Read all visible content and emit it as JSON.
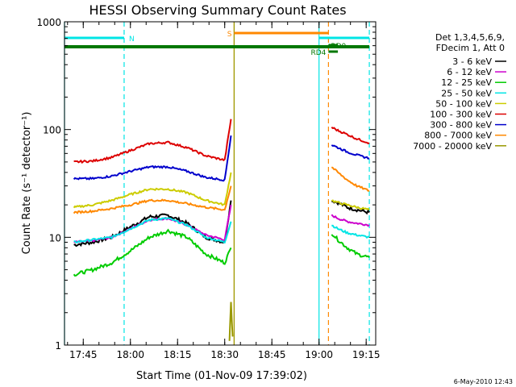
{
  "chart_data": {
    "type": "line",
    "title": "HESSI Observing Summary Count Rates",
    "xlabel": "Start Time (01-Nov-09 17:39:02)",
    "ylabel": "Count Rate (s⁻¹ detector⁻¹)",
    "y_scale": "log",
    "ylim": [
      1,
      1000
    ],
    "xlim_minutes_from_17_39_02": [
      0,
      99
    ],
    "x_ticks": [
      "17:45",
      "18:00",
      "18:15",
      "18:30",
      "18:45",
      "19:00",
      "19:15"
    ],
    "y_ticks": [
      "1",
      "10",
      "100",
      "1000"
    ],
    "grid": false,
    "legend_position": "outside-right",
    "legend_header": [
      "Det 1,3,4,5,6,9,",
      "FDecim 1, Att 0"
    ],
    "series": [
      {
        "name": "3 - 6 keV",
        "color": "#000000",
        "segments": [
          {
            "x": [
              "17:42",
              "17:48",
              "17:54",
              "18:00",
              "18:06",
              "18:12",
              "18:18",
              "18:24",
              "18:30",
              "18:32"
            ],
            "y": [
              8.5,
              9.0,
              10.0,
              12.5,
              15.5,
              16.0,
              13.5,
              10.0,
              9.0,
              22
            ]
          },
          {
            "x": [
              "19:04",
              "19:06",
              "19:09",
              "19:12",
              "19:16"
            ],
            "y": [
              22,
              21,
              19,
              18,
              17
            ]
          }
        ]
      },
      {
        "name": "6 - 12 keV",
        "color": "#cc00cc",
        "segments": [
          {
            "x": [
              "17:42",
              "17:48",
              "17:54",
              "18:00",
              "18:06",
              "18:12",
              "18:18",
              "18:24",
              "18:30",
              "18:32"
            ],
            "y": [
              9.0,
              9.3,
              10.0,
              12.0,
              14.5,
              15.0,
              13.0,
              10.5,
              9.5,
              20
            ]
          },
          {
            "x": [
              "19:04",
              "19:06",
              "19:09",
              "19:12",
              "19:16"
            ],
            "y": [
              16,
              15,
              14,
              13.5,
              13
            ]
          }
        ]
      },
      {
        "name": "12 - 25 keV",
        "color": "#00cc00",
        "segments": [
          {
            "x": [
              "17:42",
              "17:48",
              "17:54",
              "18:00",
              "18:06",
              "18:12",
              "18:18",
              "18:24",
              "18:30",
              "18:32"
            ],
            "y": [
              4.5,
              5.0,
              5.8,
              7.5,
              10.0,
              11.5,
              10.0,
              7.0,
              5.8,
              8
            ]
          },
          {
            "x": [
              "19:04",
              "19:06",
              "19:09",
              "19:12",
              "19:16"
            ],
            "y": [
              11,
              9.5,
              8,
              7,
              6.5
            ]
          }
        ]
      },
      {
        "name": "25 - 50 keV",
        "color": "#00e5e5",
        "segments": [
          {
            "x": [
              "17:42",
              "17:48",
              "17:54",
              "18:00",
              "18:06",
              "18:12",
              "18:18",
              "18:24",
              "18:30",
              "18:32"
            ],
            "y": [
              9.0,
              9.5,
              10.0,
              12.0,
              14.5,
              15.0,
              13.0,
              10.0,
              9.0,
              14
            ]
          },
          {
            "x": [
              "19:04",
              "19:06",
              "19:09",
              "19:12",
              "19:16"
            ],
            "y": [
              13,
              12,
              11,
              10.5,
              10
            ]
          }
        ]
      },
      {
        "name": "50 - 100 keV",
        "color": "#cccc00",
        "segments": [
          {
            "x": [
              "17:42",
              "17:48",
              "17:54",
              "18:00",
              "18:06",
              "18:12",
              "18:18",
              "18:24",
              "18:30",
              "18:32"
            ],
            "y": [
              19,
              20,
              22,
              25,
              28,
              28,
              26,
              22,
              20,
              40
            ]
          },
          {
            "x": [
              "19:04",
              "19:06",
              "19:09",
              "19:12",
              "19:16"
            ],
            "y": [
              22,
              21,
              20,
              19,
              18
            ]
          }
        ]
      },
      {
        "name": "100 - 300 keV",
        "color": "#dd0000",
        "segments": [
          {
            "x": [
              "17:42",
              "17:48",
              "17:54",
              "18:00",
              "18:06",
              "18:12",
              "18:18",
              "18:24",
              "18:30",
              "18:32"
            ],
            "y": [
              50,
              51,
              55,
              64,
              74,
              76,
              68,
              57,
              52,
              125
            ]
          },
          {
            "x": [
              "19:04",
              "19:06",
              "19:09",
              "19:12",
              "19:16"
            ],
            "y": [
              105,
              98,
              90,
              82,
              75
            ]
          }
        ]
      },
      {
        "name": "300 - 800 keV",
        "color": "#0000cc",
        "segments": [
          {
            "x": [
              "17:42",
              "17:48",
              "17:54",
              "18:00",
              "18:06",
              "18:12",
              "18:18",
              "18:24",
              "18:30",
              "18:32"
            ],
            "y": [
              35,
              35,
              37,
              41,
              45,
              45,
              41,
              36,
              34,
              88
            ]
          },
          {
            "x": [
              "19:04",
              "19:06",
              "19:09",
              "19:12",
              "19:16"
            ],
            "y": [
              72,
              68,
              62,
              58,
              54
            ]
          }
        ]
      },
      {
        "name": "800 - 7000 keV",
        "color": "#ff8800",
        "segments": [
          {
            "x": [
              "17:42",
              "17:48",
              "17:54",
              "18:00",
              "18:06",
              "18:12",
              "18:18",
              "18:24",
              "18:30",
              "18:32"
            ],
            "y": [
              17,
              17.5,
              18.5,
              20,
              22,
              22,
              20.5,
              19,
              18,
              30
            ]
          },
          {
            "x": [
              "19:04",
              "19:06",
              "19:09",
              "19:12",
              "19:16"
            ],
            "y": [
              45,
              40,
              34,
              30,
              27
            ]
          }
        ]
      },
      {
        "name": "7000 - 20000 keV",
        "color": "#999900",
        "segments": [
          {
            "x": [
              "18:31:30",
              "18:32",
              "18:32:30"
            ],
            "y": [
              1.1,
              2.5,
              1.2
            ]
          }
        ]
      }
    ],
    "state_bars": [
      {
        "label": "N",
        "color": "#00e5e5",
        "x": [
          [
            "17:39:02",
            "17:58"
          ],
          [
            "19:00",
            "19:16"
          ]
        ]
      },
      {
        "label": "S",
        "color": "#ff8800",
        "x": [
          [
            "18:33",
            "19:03"
          ]
        ]
      },
      {
        "label": "",
        "color": "#007700",
        "x": [
          [
            "17:39:02",
            "19:16"
          ]
        ]
      },
      {
        "label": "RD0",
        "color": "#007700",
        "x": [
          [
            "19:03",
            "19:06"
          ]
        ]
      },
      {
        "label": "RD4",
        "color": "#007700",
        "x": [
          [
            "19:03",
            "19:06"
          ]
        ]
      }
    ],
    "vertical_markers": [
      {
        "x": "17:39:02",
        "color": "#00e5e5",
        "style": "solid"
      },
      {
        "x": "17:58",
        "color": "#00e5e5",
        "style": "dashed"
      },
      {
        "x": "18:33",
        "color": "#ff8800",
        "style": "solid"
      },
      {
        "x": "18:33",
        "color": "#999900",
        "style": "solid"
      },
      {
        "x": "19:00",
        "color": "#00e5e5",
        "style": "solid"
      },
      {
        "x": "19:03",
        "color": "#ff8800",
        "style": "dashed"
      },
      {
        "x": "19:16",
        "color": "#00e5e5",
        "style": "dashed"
      }
    ]
  },
  "footer": {
    "timestamp": "6-May-2010 12:43"
  }
}
